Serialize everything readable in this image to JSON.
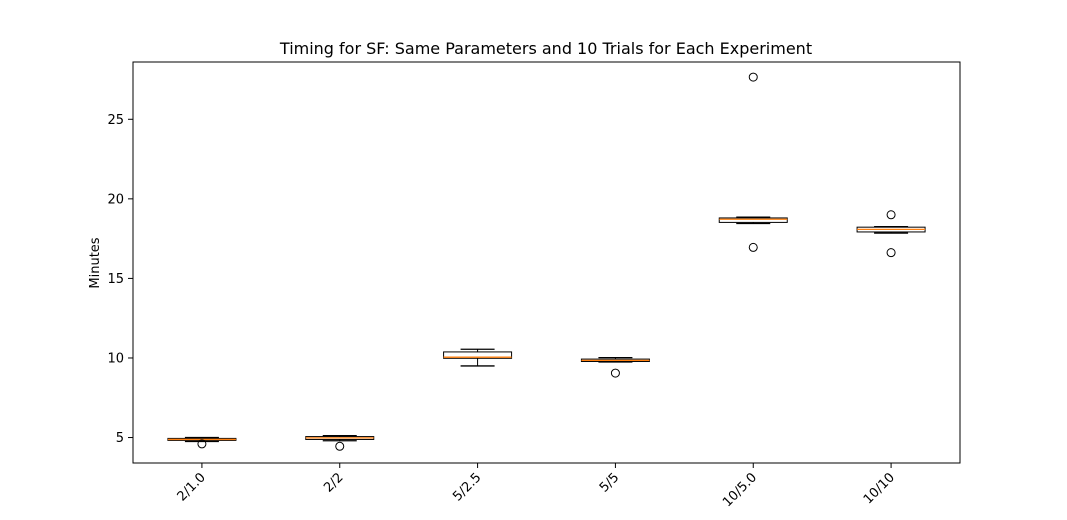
{
  "chart_data": {
    "type": "box",
    "title": "Timing for SF: Same Parameters and 10 Trials for Each Experiment",
    "xlabel": "",
    "ylabel": "Minutes",
    "ylim": [
      3.4,
      28.6
    ],
    "yticks": [
      5,
      10,
      15,
      20,
      25
    ],
    "grid": false,
    "legend": "none",
    "categories": [
      "2/1.0",
      "2/2",
      "5/2.5",
      "5/5",
      "10/5.0",
      "10/10"
    ],
    "boxes": [
      {
        "whisker_low": 4.75,
        "q1": 4.82,
        "median": 4.88,
        "q3": 4.94,
        "whisker_high": 5.0,
        "outliers": [
          4.6
        ]
      },
      {
        "whisker_low": 4.8,
        "q1": 4.88,
        "median": 4.98,
        "q3": 5.06,
        "whisker_high": 5.12,
        "outliers": [
          4.45
        ]
      },
      {
        "whisker_low": 9.5,
        "q1": 9.98,
        "median": 10.05,
        "q3": 10.38,
        "whisker_high": 10.55,
        "outliers": []
      },
      {
        "whisker_low": 9.75,
        "q1": 9.78,
        "median": 9.85,
        "q3": 9.93,
        "whisker_high": 10.02,
        "outliers": [
          9.05
        ]
      },
      {
        "whisker_low": 18.45,
        "q1": 18.52,
        "median": 18.72,
        "q3": 18.8,
        "whisker_high": 18.85,
        "outliers": [
          27.65,
          16.95
        ]
      },
      {
        "whisker_low": 17.85,
        "q1": 17.92,
        "median": 18.08,
        "q3": 18.22,
        "whisker_high": 18.25,
        "outliers": [
          19.0,
          16.62
        ]
      }
    ],
    "colors": {
      "box_edge": "#000000",
      "box_fill": "#ffffff",
      "median": "#ff7f0e",
      "outlier_edge": "#000000",
      "axes": "#000000"
    }
  }
}
